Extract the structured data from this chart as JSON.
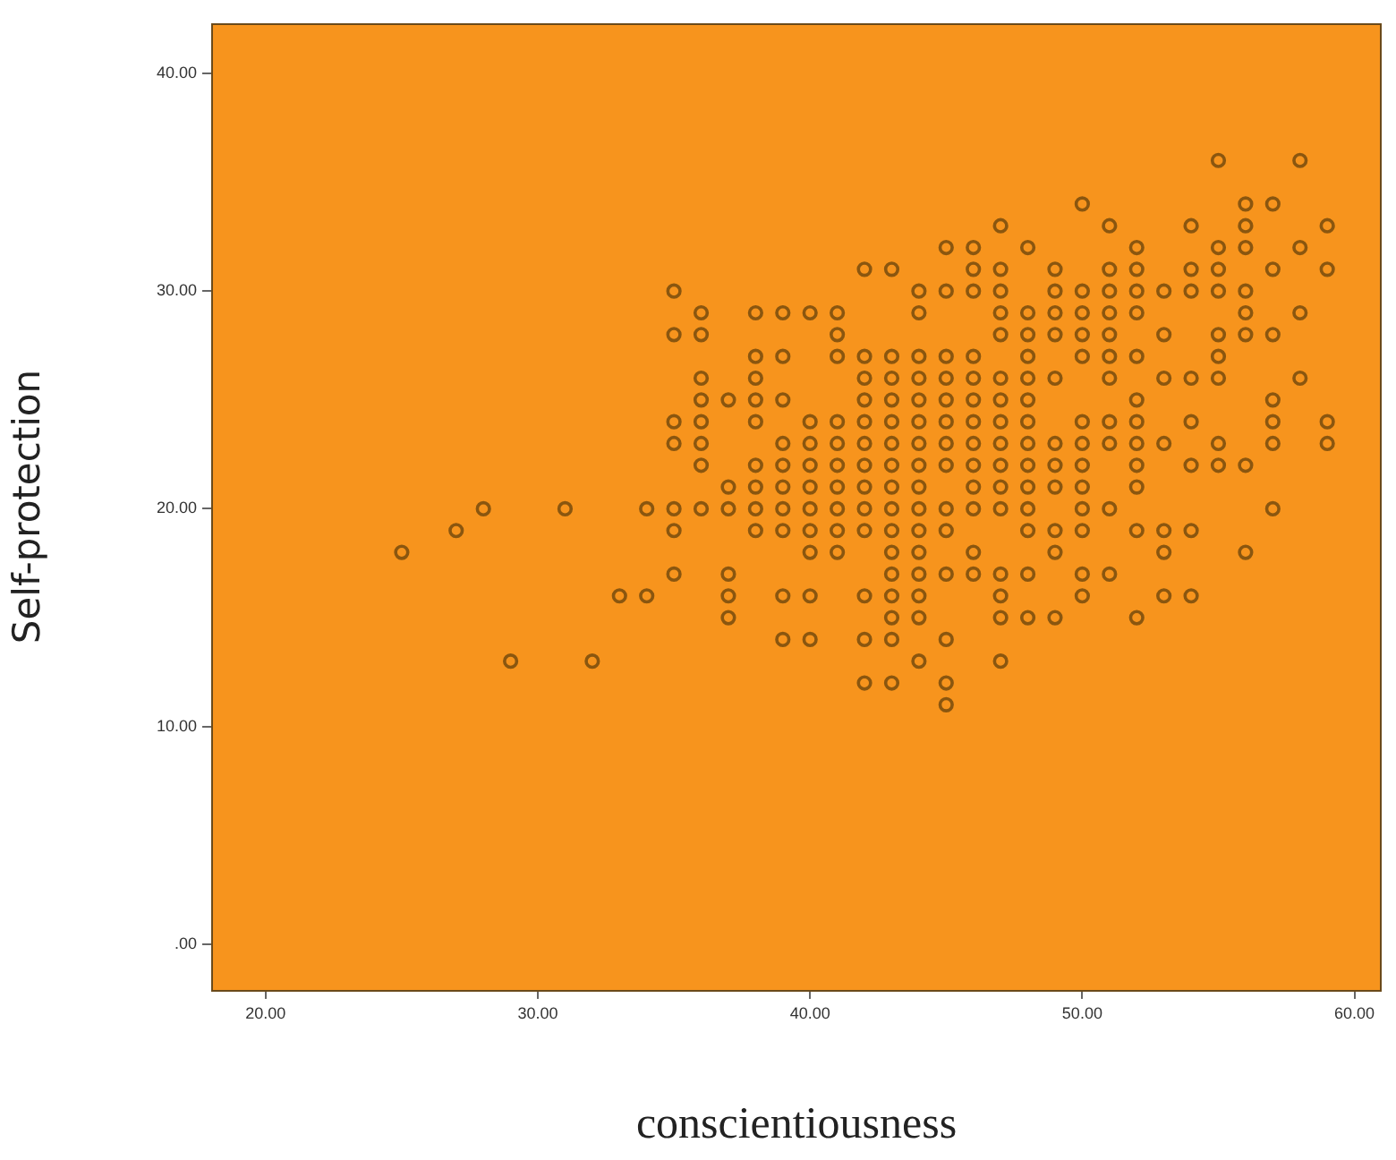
{
  "chart_data": {
    "type": "scatter",
    "xlabel": "conscientiousness",
    "ylabel": "Self-protection",
    "marker": "circle",
    "grid": false,
    "legend": false,
    "xlim": [
      18,
      61
    ],
    "ylim": [
      -2.1,
      42.3
    ],
    "xticks": [
      {
        "value": 20,
        "label": "20.00"
      },
      {
        "value": 30,
        "label": "30.00"
      },
      {
        "value": 40,
        "label": "40.00"
      },
      {
        "value": 50,
        "label": "50.00"
      },
      {
        "value": 60,
        "label": "60.00"
      }
    ],
    "yticks": [
      {
        "value": 0,
        "label": ".00"
      },
      {
        "value": 10,
        "label": "10.00"
      },
      {
        "value": 20,
        "label": "20.00"
      },
      {
        "value": 30,
        "label": "30.00"
      },
      {
        "value": 40,
        "label": "40.00"
      }
    ],
    "series": [
      {
        "color": "#8a560f",
        "x": [
          25,
          27,
          28,
          29,
          31,
          32,
          33,
          34,
          34,
          35,
          35,
          35,
          35,
          35,
          35,
          35,
          36,
          36,
          36,
          36,
          36,
          36,
          36,
          36,
          37,
          37,
          37,
          37,
          37,
          37,
          38,
          38,
          38,
          38,
          38,
          38,
          38,
          38,
          38,
          39,
          39,
          39,
          39,
          39,
          39,
          39,
          39,
          39,
          39,
          40,
          40,
          40,
          40,
          40,
          40,
          40,
          40,
          40,
          40,
          41,
          41,
          41,
          41,
          41,
          41,
          41,
          41,
          41,
          41,
          42,
          42,
          42,
          42,
          42,
          42,
          42,
          42,
          42,
          42,
          42,
          42,
          42,
          43,
          43,
          43,
          43,
          43,
          43,
          43,
          43,
          43,
          43,
          43,
          43,
          43,
          43,
          43,
          43,
          44,
          44,
          44,
          44,
          44,
          44,
          44,
          44,
          44,
          44,
          44,
          44,
          44,
          44,
          44,
          44,
          45,
          45,
          45,
          45,
          45,
          45,
          45,
          45,
          45,
          45,
          45,
          45,
          45,
          45,
          46,
          46,
          46,
          46,
          46,
          46,
          46,
          46,
          46,
          46,
          46,
          46,
          46,
          47,
          47,
          47,
          47,
          47,
          47,
          47,
          47,
          47,
          47,
          47,
          47,
          47,
          47,
          47,
          47,
          48,
          48,
          48,
          48,
          48,
          48,
          48,
          48,
          48,
          48,
          48,
          48,
          48,
          48,
          49,
          49,
          49,
          49,
          49,
          49,
          49,
          49,
          49,
          49,
          49,
          50,
          50,
          50,
          50,
          50,
          50,
          50,
          50,
          50,
          50,
          50,
          50,
          50,
          51,
          51,
          51,
          51,
          51,
          51,
          51,
          51,
          51,
          51,
          51,
          52,
          52,
          52,
          52,
          52,
          52,
          52,
          52,
          52,
          52,
          52,
          52,
          53,
          53,
          53,
          53,
          53,
          53,
          53,
          54,
          54,
          54,
          54,
          54,
          54,
          54,
          54,
          55,
          55,
          55,
          55,
          55,
          55,
          55,
          55,
          55,
          56,
          56,
          56,
          56,
          56,
          56,
          56,
          56,
          57,
          57,
          57,
          57,
          57,
          57,
          57,
          58,
          58,
          58,
          58,
          59,
          59,
          59,
          59
        ],
        "values": [
          18,
          19,
          20,
          13,
          20,
          13,
          16,
          20,
          16,
          30,
          28,
          24,
          23,
          20,
          19,
          17,
          29,
          28,
          26,
          25,
          24,
          23,
          22,
          20,
          25,
          21,
          20,
          17,
          16,
          15,
          29,
          27,
          26,
          25,
          24,
          22,
          21,
          20,
          19,
          29,
          27,
          25,
          23,
          22,
          21,
          20,
          19,
          16,
          14,
          29,
          24,
          23,
          22,
          21,
          20,
          19,
          18,
          16,
          14,
          29,
          28,
          27,
          24,
          23,
          22,
          21,
          20,
          19,
          18,
          31,
          27,
          26,
          25,
          24,
          23,
          22,
          21,
          20,
          19,
          16,
          14,
          12,
          31,
          27,
          26,
          25,
          24,
          23,
          22,
          21,
          20,
          19,
          18,
          17,
          16,
          15,
          14,
          12,
          30,
          29,
          27,
          26,
          25,
          24,
          23,
          22,
          21,
          20,
          19,
          18,
          17,
          16,
          15,
          13,
          32,
          30,
          27,
          26,
          25,
          24,
          23,
          22,
          20,
          19,
          17,
          14,
          12,
          11,
          32,
          31,
          30,
          27,
          26,
          25,
          24,
          23,
          22,
          21,
          20,
          18,
          17,
          33,
          31,
          30,
          29,
          28,
          26,
          25,
          24,
          23,
          22,
          21,
          20,
          17,
          16,
          15,
          13,
          32,
          29,
          28,
          27,
          26,
          25,
          24,
          23,
          22,
          21,
          20,
          19,
          17,
          15,
          31,
          30,
          29,
          28,
          26,
          23,
          22,
          21,
          19,
          18,
          15,
          34,
          30,
          29,
          28,
          27,
          24,
          23,
          22,
          21,
          20,
          19,
          17,
          16,
          33,
          31,
          30,
          29,
          28,
          27,
          26,
          24,
          23,
          20,
          17,
          32,
          31,
          30,
          29,
          27,
          25,
          24,
          23,
          22,
          21,
          19,
          15,
          30,
          28,
          26,
          23,
          19,
          18,
          16,
          33,
          31,
          30,
          26,
          24,
          22,
          19,
          16,
          36,
          32,
          31,
          30,
          28,
          27,
          26,
          23,
          22,
          34,
          33,
          32,
          30,
          29,
          28,
          22,
          18,
          34,
          31,
          28,
          25,
          24,
          23,
          20,
          36,
          32,
          29,
          26,
          33,
          31,
          24,
          23
        ]
      }
    ]
  }
}
